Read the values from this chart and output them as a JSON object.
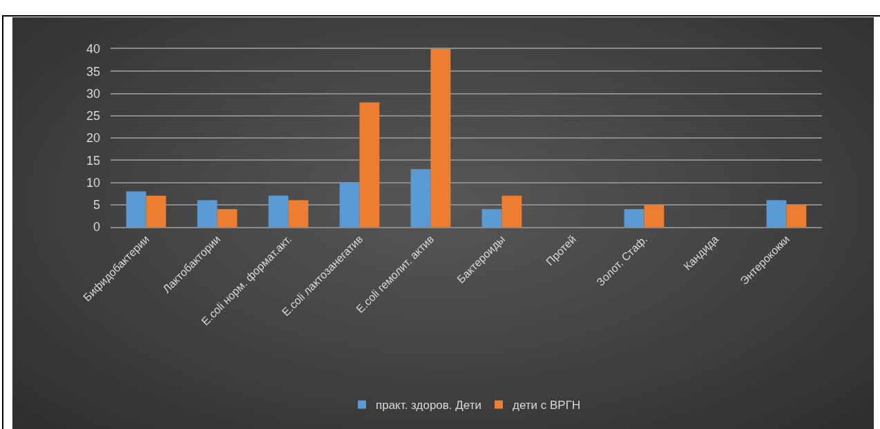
{
  "chart_data": {
    "type": "bar",
    "categories": [
      "Бифидобактерии",
      "Лактобактории",
      "E.coli норм. формат.акт.",
      "E.coli лактозанегатив",
      "E.coli гемолит. актив",
      "Бактероиды",
      "Протей",
      "Золот. Стаф.",
      "Кандида",
      "Энтерококки"
    ],
    "series": [
      {
        "name": "практ. здоров. Дети",
        "color": "#5b9bd5",
        "values": [
          8,
          6,
          7,
          10,
          13,
          4,
          0,
          4,
          0,
          6
        ]
      },
      {
        "name": "дети с ВРГН",
        "color": "#ed7d31",
        "values": [
          7,
          4,
          6,
          28,
          40,
          7,
          0,
          5,
          0,
          5
        ]
      }
    ],
    "ylim": [
      0,
      40
    ],
    "yticks": [
      0,
      5,
      10,
      15,
      20,
      25,
      30,
      35,
      40
    ],
    "grid": "y",
    "legend": "bottom"
  }
}
